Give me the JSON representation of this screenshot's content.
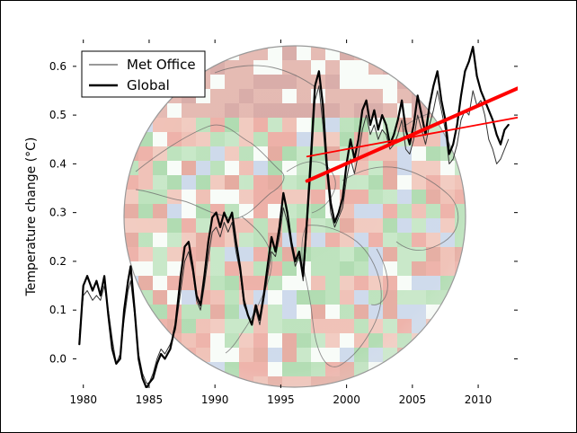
{
  "chart_data": {
    "type": "line",
    "title": "",
    "xlabel": "",
    "ylabel": "Temperature change (°C)",
    "xlim": [
      1979.2,
      2013.0
    ],
    "ylim": [
      -0.06,
      0.655
    ],
    "xticks": [
      1980,
      1985,
      1990,
      1995,
      2000,
      2005,
      2010
    ],
    "yticks": [
      0.0,
      0.1,
      0.2,
      0.3,
      0.4,
      0.5,
      0.6
    ],
    "xtick_labels": [
      "1980",
      "1985",
      "1990",
      "1995",
      "2000",
      "2005",
      "2010"
    ],
    "ytick_labels": [
      "0.0",
      "0.1",
      "0.2",
      "0.3",
      "0.4",
      "0.5",
      "0.6"
    ],
    "grid": false,
    "legend_position": "top-left",
    "legend": [
      "Met Office",
      "Global"
    ],
    "background": "orthographic globe map of temperature anomaly (red warm, green/blue cool)",
    "series": [
      {
        "name": "Met Office",
        "color": "#333333",
        "x": [
          1979.7,
          1980.0,
          1980.3,
          1980.7,
          1981.0,
          1981.3,
          1981.6,
          1981.9,
          1982.2,
          1982.5,
          1982.8,
          1983.1,
          1983.4,
          1983.6,
          1983.9,
          1984.2,
          1984.5,
          1984.8,
          1985.0,
          1985.3,
          1985.6,
          1985.9,
          1986.2,
          1986.6,
          1987.0,
          1987.4,
          1987.7,
          1988.0,
          1988.3,
          1988.6,
          1988.9,
          1989.2,
          1989.5,
          1989.8,
          1990.1,
          1990.4,
          1990.7,
          1991.0,
          1991.3,
          1991.6,
          1991.9,
          1992.2,
          1992.5,
          1992.8,
          1993.1,
          1993.4,
          1993.7,
          1994.0,
          1994.3,
          1994.6,
          1994.9,
          1995.2,
          1995.5,
          1995.8,
          1996.1,
          1996.4,
          1996.7,
          1997.0,
          1997.3,
          1997.6,
          1997.9,
          1998.2,
          1998.5,
          1998.8,
          1999.1,
          1999.4,
          1999.7,
          2000.0,
          2000.3,
          2000.6,
          2000.9,
          2001.2,
          2001.5,
          2001.8,
          2002.1,
          2002.4,
          2002.7,
          2003.0,
          2003.3,
          2003.6,
          2003.9,
          2004.2,
          2004.5,
          2004.8,
          2005.1,
          2005.4,
          2005.7,
          2006.0,
          2006.3,
          2006.6,
          2006.9,
          2007.2,
          2007.5,
          2007.8,
          2008.1,
          2008.4,
          2008.7,
          2009.0,
          2009.3,
          2009.6,
          2009.9,
          2010.2,
          2010.5,
          2010.8,
          2011.1,
          2011.4,
          2011.7,
          2012.0,
          2012.3
        ],
        "y": [
          0.05,
          0.13,
          0.14,
          0.12,
          0.13,
          0.12,
          0.15,
          0.1,
          0.04,
          -0.01,
          0.01,
          0.08,
          0.14,
          0.16,
          0.09,
          0.01,
          -0.03,
          -0.05,
          -0.05,
          -0.03,
          0.0,
          0.02,
          0.01,
          0.03,
          0.06,
          0.14,
          0.2,
          0.22,
          0.18,
          0.12,
          0.1,
          0.15,
          0.21,
          0.26,
          0.27,
          0.25,
          0.28,
          0.26,
          0.28,
          0.22,
          0.18,
          0.11,
          0.09,
          0.07,
          0.1,
          0.07,
          0.12,
          0.17,
          0.22,
          0.21,
          0.25,
          0.31,
          0.28,
          0.23,
          0.19,
          0.21,
          0.16,
          0.27,
          0.39,
          0.53,
          0.56,
          0.48,
          0.38,
          0.3,
          0.27,
          0.29,
          0.31,
          0.37,
          0.41,
          0.38,
          0.42,
          0.47,
          0.5,
          0.46,
          0.48,
          0.45,
          0.47,
          0.46,
          0.43,
          0.44,
          0.46,
          0.49,
          0.43,
          0.42,
          0.45,
          0.5,
          0.47,
          0.44,
          0.48,
          0.51,
          0.55,
          0.51,
          0.47,
          0.4,
          0.41,
          0.44,
          0.49,
          0.51,
          0.5,
          0.55,
          0.52,
          0.53,
          0.5,
          0.45,
          0.43,
          0.4,
          0.41,
          0.43,
          0.45
        ]
      },
      {
        "name": "Global",
        "color": "#000000",
        "x": [
          1979.7,
          1980.0,
          1980.3,
          1980.7,
          1981.0,
          1981.3,
          1981.6,
          1981.9,
          1982.2,
          1982.5,
          1982.8,
          1983.1,
          1983.4,
          1983.6,
          1983.9,
          1984.2,
          1984.5,
          1984.8,
          1985.0,
          1985.3,
          1985.6,
          1985.9,
          1986.2,
          1986.6,
          1987.0,
          1987.4,
          1987.7,
          1988.0,
          1988.3,
          1988.6,
          1988.9,
          1989.2,
          1989.5,
          1989.8,
          1990.1,
          1990.4,
          1990.7,
          1991.0,
          1991.3,
          1991.6,
          1991.9,
          1992.2,
          1992.5,
          1992.8,
          1993.1,
          1993.4,
          1993.7,
          1994.0,
          1994.3,
          1994.6,
          1994.9,
          1995.2,
          1995.5,
          1995.8,
          1996.1,
          1996.4,
          1996.7,
          1997.0,
          1997.3,
          1997.6,
          1997.9,
          1998.2,
          1998.5,
          1998.8,
          1999.1,
          1999.4,
          1999.7,
          2000.0,
          2000.3,
          2000.6,
          2000.9,
          2001.2,
          2001.5,
          2001.8,
          2002.1,
          2002.4,
          2002.7,
          2003.0,
          2003.3,
          2003.6,
          2003.9,
          2004.2,
          2004.5,
          2004.8,
          2005.1,
          2005.4,
          2005.7,
          2006.0,
          2006.3,
          2006.6,
          2006.9,
          2007.2,
          2007.5,
          2007.8,
          2008.1,
          2008.4,
          2008.7,
          2009.0,
          2009.3,
          2009.6,
          2009.9,
          2010.2,
          2010.5,
          2010.8,
          2011.1,
          2011.4,
          2011.7,
          2012.0,
          2012.3
        ],
        "y": [
          0.03,
          0.15,
          0.17,
          0.14,
          0.16,
          0.13,
          0.17,
          0.09,
          0.02,
          -0.01,
          0.0,
          0.1,
          0.16,
          0.19,
          0.1,
          0.0,
          -0.04,
          -0.06,
          -0.05,
          -0.04,
          -0.01,
          0.01,
          0.0,
          0.02,
          0.07,
          0.17,
          0.23,
          0.24,
          0.19,
          0.13,
          0.11,
          0.17,
          0.24,
          0.29,
          0.3,
          0.27,
          0.3,
          0.28,
          0.3,
          0.24,
          0.19,
          0.12,
          0.09,
          0.07,
          0.11,
          0.08,
          0.13,
          0.19,
          0.25,
          0.22,
          0.27,
          0.34,
          0.3,
          0.24,
          0.2,
          0.22,
          0.17,
          0.29,
          0.42,
          0.56,
          0.59,
          0.52,
          0.4,
          0.32,
          0.28,
          0.3,
          0.33,
          0.4,
          0.45,
          0.41,
          0.45,
          0.51,
          0.53,
          0.48,
          0.51,
          0.47,
          0.5,
          0.48,
          0.44,
          0.46,
          0.49,
          0.53,
          0.47,
          0.44,
          0.48,
          0.54,
          0.5,
          0.46,
          0.52,
          0.56,
          0.59,
          0.53,
          0.49,
          0.42,
          0.44,
          0.48,
          0.54,
          0.59,
          0.61,
          0.64,
          0.58,
          0.55,
          0.53,
          0.51,
          0.49,
          0.46,
          0.44,
          0.47,
          0.48
        ]
      },
      {
        "color": "#ff0000",
        "width": "thin",
        "x": [
          1997.0,
          2013.0
        ],
        "y": [
          0.415,
          0.495
        ]
      },
      {
        "color": "#ff0000",
        "width": "thick",
        "x": [
          1997.0,
          2013.0
        ],
        "y": [
          0.365,
          0.555
        ]
      }
    ]
  }
}
